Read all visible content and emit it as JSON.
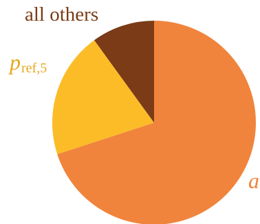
{
  "chart_data": {
    "type": "pie",
    "start": "12 o'clock, clockwise",
    "slices": [
      {
        "label": "a",
        "value": 70,
        "color": "#F0843C"
      },
      {
        "label": "p",
        "label_sub": "ref,5",
        "value": 20,
        "color": "#FBBC28"
      },
      {
        "label": "all others",
        "value": 10,
        "color": "#7A3B16"
      }
    ]
  }
}
